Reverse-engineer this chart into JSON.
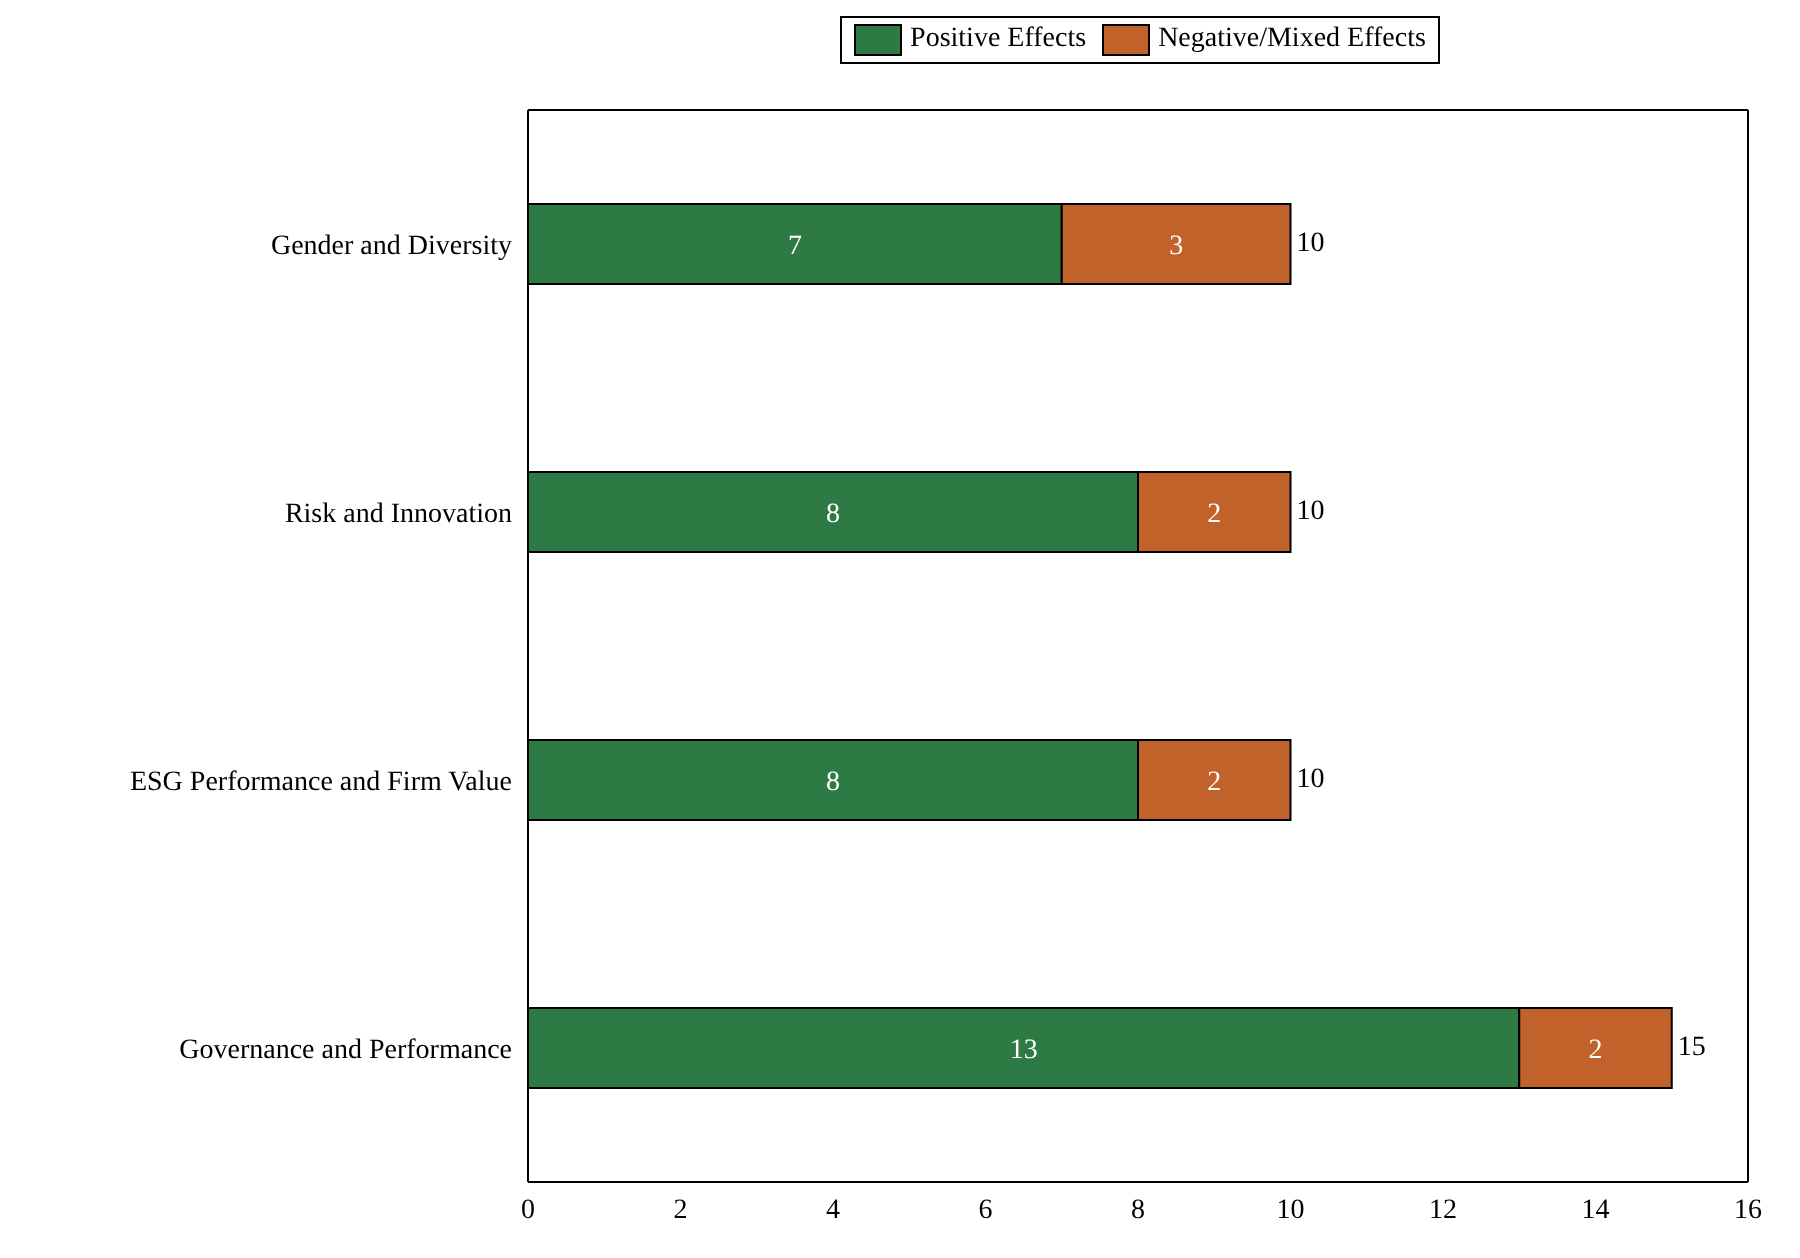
{
  "chart_data": {
    "type": "bar",
    "orientation": "horizontal",
    "stacked": true,
    "categories": [
      "Gender and Diversity",
      "Risk and Innovation",
      "ESG Performance and Firm Value",
      "Governance and Performance"
    ],
    "series": [
      {
        "name": "Positive Effects",
        "color": "#2e7a45",
        "values": [
          7,
          8,
          8,
          13
        ]
      },
      {
        "name": "Negative/Mixed Effects",
        "color": "#c0622a",
        "values": [
          3,
          2,
          2,
          2
        ]
      }
    ],
    "totals": [
      "10",
      "10",
      "10",
      "15"
    ],
    "data_labels": true,
    "xlim": [
      0,
      16
    ],
    "xticks": [
      0,
      2,
      4,
      6,
      8,
      10,
      12,
      14,
      16
    ],
    "legend": "top"
  }
}
